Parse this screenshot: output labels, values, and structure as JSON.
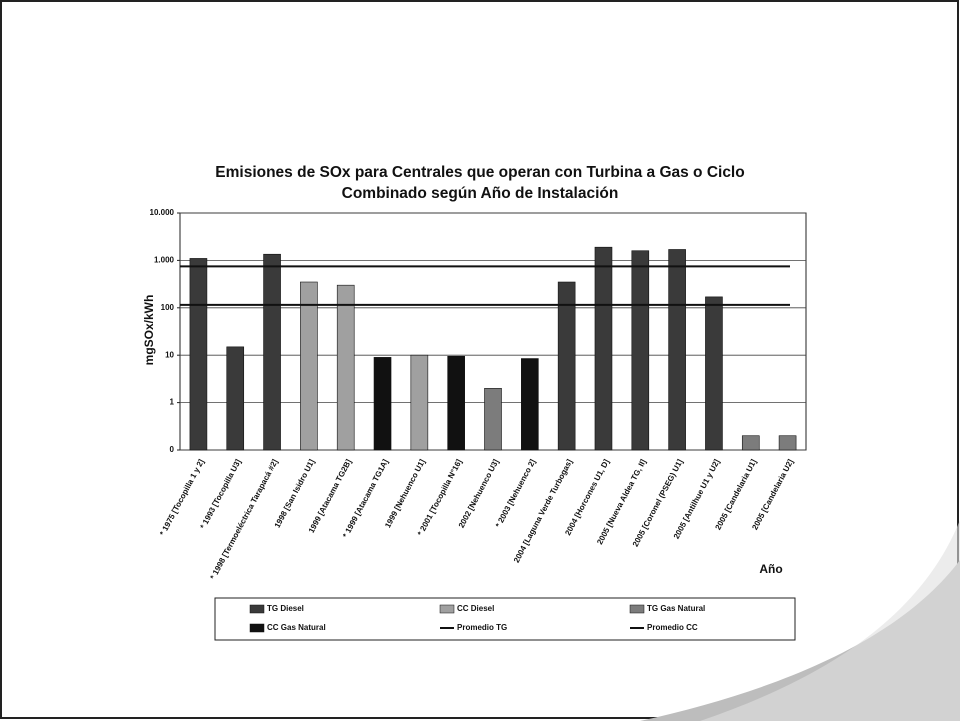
{
  "chart_data": {
    "type": "bar",
    "title": "Emisiones de SOx para Centrales que operan con Turbina a Gas o Ciclo Combinado según Año de Instalación",
    "y_label": "mgSOx/kWh",
    "x_label": "Año",
    "log_scale": true,
    "grid": true,
    "ylim": [
      0.1,
      10000
    ],
    "yticks": [
      {
        "value": 0.1,
        "label": "0"
      },
      1,
      10,
      100,
      {
        "value": 1000,
        "label": "1.000"
      },
      {
        "value": 10000,
        "label": "10.000"
      }
    ],
    "categories": [
      "* 1975 [Tocopilla 1 y 2]",
      "* 1993 [Tocopilla U3]",
      "* 1998 [Termoeléctrica Tarapacá #2]",
      "1998 [San Isidro U1]",
      "1999 [Atacama TG2B]",
      "* 1999 [Atacama TG1A]",
      "1999 [Nehuenco U1]",
      "* 2001 [Tocopilla N°16]",
      "2002 [Nehuenco U3]",
      "* 2003 [Nehuenco 2]",
      "2004 [Laguna Verde Turbogas]",
      "2004 [Horcones U1, D]",
      "2005 [Nueva Aldea TG, II]",
      "2005 [Coronel (PSEG) U1]",
      "2005 [Antilhue U1 y U2]",
      "2005 [Candelaria U1]",
      "2005 [Candelaria U2]"
    ],
    "series": [
      {
        "name": "TG Diesel",
        "color": "#3a3a3a",
        "values": [
          1100,
          15,
          1350,
          null,
          null,
          null,
          null,
          null,
          null,
          null,
          350,
          1900,
          1600,
          1700,
          170,
          null,
          null
        ]
      },
      {
        "name": "CC Diesel",
        "color": "#a0a0a0",
        "values": [
          null,
          null,
          null,
          350,
          300,
          null,
          10,
          null,
          null,
          null,
          null,
          null,
          null,
          null,
          null,
          null,
          null
        ]
      },
      {
        "name": "TG Gas Natural",
        "color": "#7c7c7c",
        "values": [
          null,
          null,
          null,
          null,
          null,
          null,
          null,
          null,
          2,
          null,
          null,
          null,
          null,
          null,
          null,
          0.2,
          0.2
        ]
      },
      {
        "name": "CC Gas Natural",
        "color": "#111111",
        "values": [
          null,
          null,
          null,
          null,
          null,
          9,
          null,
          9.5,
          null,
          8.5,
          null,
          null,
          null,
          null,
          null,
          null,
          null
        ]
      }
    ],
    "reference_lines": [
      {
        "name": "Promedio TG",
        "color": "#111111",
        "value": 750
      },
      {
        "name": "Promedio CC",
        "color": "#111111",
        "value": 115
      }
    ]
  }
}
